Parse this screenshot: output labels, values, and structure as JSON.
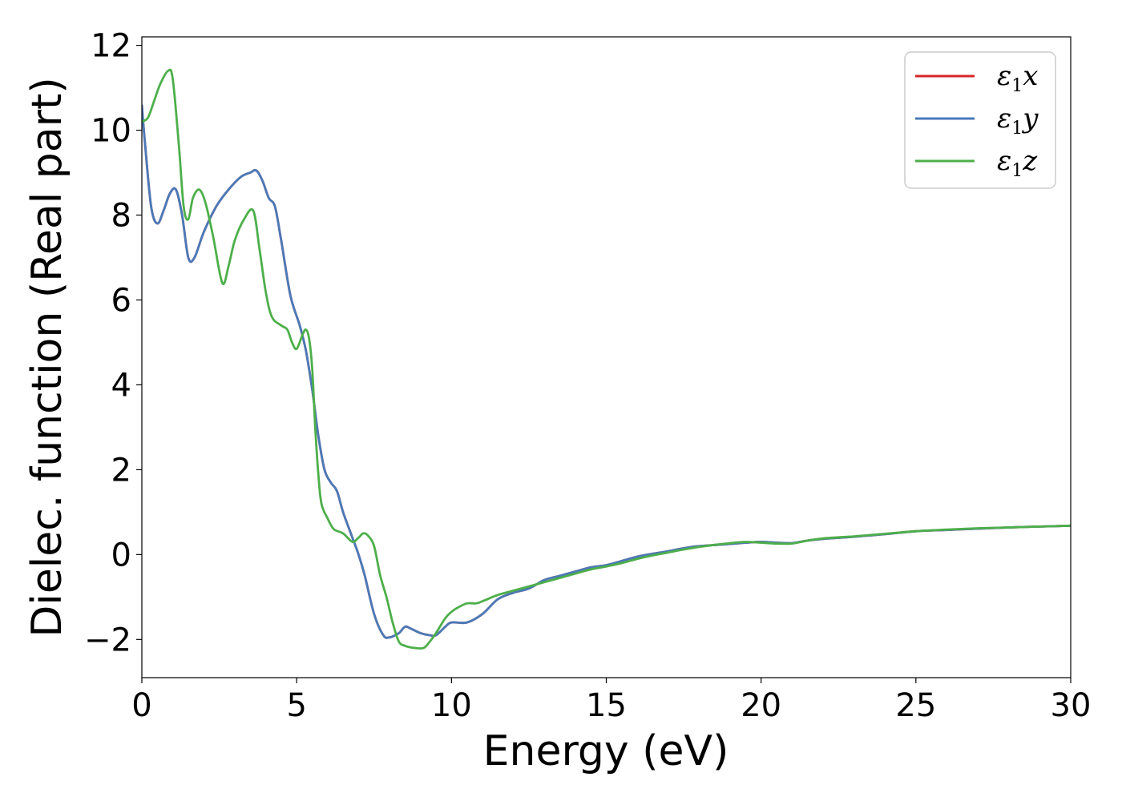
{
  "chart_data": {
    "type": "line",
    "xlabel": "Energy (eV)",
    "ylabel": "Dielec. function (Real part)",
    "xlim": [
      0,
      30
    ],
    "ylim": [
      -2.9,
      12.2
    ],
    "xticks": [
      0,
      5,
      10,
      15,
      20,
      25,
      30
    ],
    "xtick_labels": [
      "0",
      "5",
      "10",
      "15",
      "20",
      "25",
      "30"
    ],
    "yticks": [
      -2,
      0,
      2,
      4,
      6,
      8,
      10,
      12
    ],
    "ytick_labels": [
      "−2",
      "0",
      "2",
      "4",
      "6",
      "8",
      "10",
      "12"
    ],
    "grid": false,
    "legend_position": "top-right",
    "series": [
      {
        "name": "ε₁x",
        "legend": {
          "base": "ε",
          "sub": "1",
          "var": "x"
        },
        "color": "#d62728",
        "x": [
          0,
          0.1,
          0.3,
          0.5,
          0.7,
          0.9,
          1.1,
          1.3,
          1.5,
          1.7,
          2.0,
          2.4,
          2.8,
          3.2,
          3.5,
          3.7,
          3.9,
          4.1,
          4.3,
          4.5,
          4.8,
          5.1,
          5.3,
          5.5,
          5.7,
          5.9,
          6.1,
          6.3,
          6.5,
          6.8,
          7.0,
          7.2,
          7.5,
          7.8,
          8.0,
          8.3,
          8.5,
          8.7,
          9.0,
          9.3,
          9.5,
          9.8,
          10.0,
          10.5,
          11.0,
          11.5,
          12.0,
          12.5,
          13.0,
          13.5,
          14.0,
          14.5,
          15.0,
          15.5,
          16.0,
          16.5,
          17.0,
          17.5,
          18.0,
          19.0,
          19.5,
          20.0,
          20.5,
          21.0,
          21.5,
          22.0,
          23.0,
          24.0,
          25.0,
          26.0,
          27.0,
          28.0,
          29.0,
          30.0
        ],
        "y": [
          10.6,
          9.7,
          8.2,
          7.8,
          8.1,
          8.5,
          8.6,
          8.0,
          7.0,
          7.0,
          7.6,
          8.2,
          8.6,
          8.9,
          9.0,
          9.05,
          8.8,
          8.4,
          8.2,
          7.4,
          6.1,
          5.4,
          4.8,
          3.9,
          2.8,
          2.0,
          1.7,
          1.5,
          1.0,
          0.4,
          0.0,
          -0.5,
          -1.4,
          -1.9,
          -1.95,
          -1.85,
          -1.7,
          -1.75,
          -1.85,
          -1.9,
          -1.9,
          -1.7,
          -1.6,
          -1.6,
          -1.4,
          -1.05,
          -0.9,
          -0.8,
          -0.6,
          -0.5,
          -0.4,
          -0.3,
          -0.25,
          -0.15,
          -0.05,
          0.02,
          0.08,
          0.15,
          0.2,
          0.25,
          0.28,
          0.3,
          0.28,
          0.27,
          0.33,
          0.37,
          0.42,
          0.48,
          0.55,
          0.58,
          0.61,
          0.64,
          0.66,
          0.68
        ]
      },
      {
        "name": "ε₁y",
        "legend": {
          "base": "ε",
          "sub": "1",
          "var": "y"
        },
        "color": "#4a7ab8",
        "x": [
          0,
          0.1,
          0.3,
          0.5,
          0.7,
          0.9,
          1.1,
          1.3,
          1.5,
          1.7,
          2.0,
          2.4,
          2.8,
          3.2,
          3.5,
          3.7,
          3.9,
          4.1,
          4.3,
          4.5,
          4.8,
          5.1,
          5.3,
          5.5,
          5.7,
          5.9,
          6.1,
          6.3,
          6.5,
          6.8,
          7.0,
          7.2,
          7.5,
          7.8,
          8.0,
          8.3,
          8.5,
          8.7,
          9.0,
          9.3,
          9.5,
          9.8,
          10.0,
          10.5,
          11.0,
          11.5,
          12.0,
          12.5,
          13.0,
          13.5,
          14.0,
          14.5,
          15.0,
          15.5,
          16.0,
          16.5,
          17.0,
          17.5,
          18.0,
          19.0,
          19.5,
          20.0,
          20.5,
          21.0,
          21.5,
          22.0,
          23.0,
          24.0,
          25.0,
          26.0,
          27.0,
          28.0,
          29.0,
          30.0
        ],
        "y": [
          10.6,
          9.7,
          8.2,
          7.8,
          8.1,
          8.5,
          8.6,
          8.0,
          7.0,
          7.0,
          7.6,
          8.2,
          8.6,
          8.9,
          9.0,
          9.05,
          8.8,
          8.4,
          8.2,
          7.4,
          6.1,
          5.4,
          4.8,
          3.9,
          2.8,
          2.0,
          1.7,
          1.5,
          1.0,
          0.4,
          0.0,
          -0.5,
          -1.4,
          -1.9,
          -1.95,
          -1.85,
          -1.7,
          -1.75,
          -1.85,
          -1.9,
          -1.9,
          -1.7,
          -1.6,
          -1.6,
          -1.4,
          -1.05,
          -0.9,
          -0.8,
          -0.6,
          -0.5,
          -0.4,
          -0.3,
          -0.25,
          -0.15,
          -0.05,
          0.02,
          0.08,
          0.15,
          0.2,
          0.25,
          0.28,
          0.3,
          0.28,
          0.27,
          0.33,
          0.37,
          0.42,
          0.48,
          0.55,
          0.58,
          0.61,
          0.64,
          0.66,
          0.68
        ]
      },
      {
        "name": "ε₁z",
        "legend": {
          "base": "ε",
          "sub": "1",
          "var": "z"
        },
        "color": "#4daf4a",
        "x": [
          0,
          0.2,
          0.4,
          0.6,
          0.85,
          1.0,
          1.2,
          1.35,
          1.5,
          1.65,
          1.85,
          2.05,
          2.3,
          2.6,
          2.8,
          3.0,
          3.3,
          3.6,
          3.8,
          4.0,
          4.2,
          4.5,
          4.7,
          4.85,
          5.0,
          5.2,
          5.3,
          5.4,
          5.5,
          5.6,
          5.7,
          5.8,
          6.0,
          6.2,
          6.5,
          6.8,
          7.0,
          7.15,
          7.3,
          7.5,
          7.7,
          7.9,
          8.1,
          8.3,
          8.5,
          8.8,
          9.1,
          9.3,
          9.5,
          9.8,
          10.0,
          10.2,
          10.5,
          10.8,
          11.0,
          11.5,
          12.0,
          12.5,
          13.0,
          13.5,
          14.0,
          14.5,
          15.0,
          15.5,
          16.0,
          16.5,
          17.0,
          17.5,
          18.0,
          18.5,
          19.0,
          19.5,
          20.0,
          20.5,
          21.0,
          21.5,
          22.0,
          23.0,
          24.0,
          25.0,
          26.0,
          27.0,
          28.0,
          29.0,
          30.0
        ],
        "y": [
          10.2,
          10.3,
          10.7,
          11.1,
          11.4,
          11.2,
          9.6,
          8.2,
          7.9,
          8.4,
          8.6,
          8.3,
          7.5,
          6.4,
          6.8,
          7.4,
          7.9,
          8.1,
          7.2,
          6.2,
          5.6,
          5.4,
          5.3,
          5.0,
          4.85,
          5.2,
          5.3,
          5.1,
          4.4,
          3.0,
          1.9,
          1.2,
          0.85,
          0.6,
          0.5,
          0.3,
          0.4,
          0.5,
          0.45,
          0.2,
          -0.5,
          -1.0,
          -1.6,
          -2.05,
          -2.15,
          -2.2,
          -2.2,
          -2.05,
          -1.85,
          -1.5,
          -1.35,
          -1.25,
          -1.15,
          -1.15,
          -1.1,
          -0.95,
          -0.85,
          -0.75,
          -0.65,
          -0.55,
          -0.45,
          -0.35,
          -0.28,
          -0.2,
          -0.1,
          -0.02,
          0.05,
          0.12,
          0.18,
          0.23,
          0.27,
          0.3,
          0.28,
          0.26,
          0.26,
          0.33,
          0.38,
          0.43,
          0.49,
          0.55,
          0.59,
          0.62,
          0.64,
          0.66,
          0.68
        ]
      }
    ]
  }
}
